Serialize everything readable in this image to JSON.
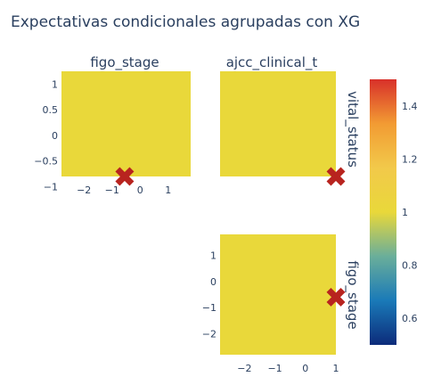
{
  "chart_data": {
    "type": "heatmap",
    "title": "Expectativas condicionales agrupadas con XG",
    "colorscale": {
      "min": 0.5,
      "max": 1.5,
      "colors": [
        "#0c2b7a",
        "#1a7ab8",
        "#6aae9a",
        "#e9d83a",
        "#f2c94a",
        "#f29b33",
        "#d8302a"
      ],
      "ticks": [
        0.6,
        0.8,
        1,
        1.2,
        1.4
      ],
      "tick_labels": [
        "0.6",
        "0.8",
        "1",
        "1.2",
        "1.4"
      ]
    },
    "panels": [
      {
        "col_label": "figo_stage",
        "x_range": [
          -2.8,
          1.8
        ],
        "y_range": [
          -0.8,
          1.25
        ],
        "x_ticks": [
          -2,
          -1,
          0,
          1
        ],
        "x_tick_labels": [
          "−2",
          "−1",
          "0",
          "1"
        ],
        "y_ticks": [
          1,
          0.5,
          0,
          -0.5,
          -1
        ],
        "y_tick_labels": [
          "1",
          "0.5",
          "0",
          "−0.5",
          "−1"
        ],
        "cell_value": 1.0,
        "marker": {
          "x": -0.55,
          "y": -0.8
        }
      },
      {
        "col_label": "ajcc_clinical_t",
        "row_label": "vital_status",
        "x_range": [
          -2.8,
          1.0
        ],
        "y_range": [
          -0.8,
          1.25
        ],
        "cell_value": 1.0,
        "marker": {
          "x": 1.0,
          "y": -0.8
        }
      },
      {
        "row_label": "figo_stage",
        "x_range": [
          -2.8,
          1.0
        ],
        "y_range": [
          -2.8,
          1.8
        ],
        "x_ticks": [
          -2,
          -1,
          0,
          1
        ],
        "x_tick_labels": [
          "−2",
          "−1",
          "0",
          "1"
        ],
        "y_ticks": [
          1,
          0,
          -1,
          -2
        ],
        "y_tick_labels": [
          "1",
          "0",
          "−1",
          "−2"
        ],
        "cell_value": 1.0,
        "marker": {
          "x": 1.0,
          "y": -0.6
        }
      }
    ]
  }
}
